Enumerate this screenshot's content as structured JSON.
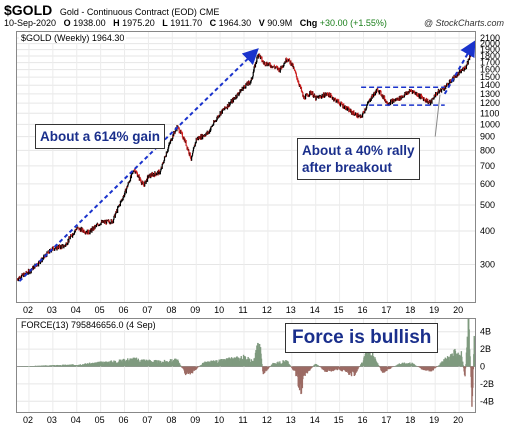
{
  "header": {
    "symbol": "$GOLD",
    "subtitle": "Gold - Continuous Contract (EOD) CME",
    "date": "10-Sep-2020",
    "open_label": "O",
    "open": "1938.00",
    "high_label": "H",
    "high": "1975.20",
    "low_label": "L",
    "low": "1911.70",
    "close_label": "C",
    "close": "1964.30",
    "volume_label": "V",
    "volume": "90.9M",
    "chg_label": "Chg",
    "chg": "+30.00 (+1.55%)",
    "brand": "@ StockCharts.com"
  },
  "annotations": {
    "gain": "About a 614% gain",
    "rally_line1": "About a 40% rally",
    "rally_line2": "after breakout",
    "force": "Force is bullish"
  },
  "colors": {
    "up": "#000000",
    "down": "#cc1f1f",
    "arrow": "#1a33cc",
    "force_fill": "#7f9a7f",
    "force_neg": "#9c6b64"
  },
  "chart_data": [
    {
      "type": "line",
      "legend": "$GOLD (Weekly) 1964.30",
      "scale": "log",
      "ylim": [
        225,
        2100
      ],
      "y_ticks": [
        300,
        400,
        500,
        600,
        700,
        800,
        900,
        1000,
        1100,
        1200,
        1300,
        1400,
        1500,
        1600,
        1700,
        1800,
        1900,
        2000,
        2100
      ],
      "x_ticks": [
        "02",
        "03",
        "04",
        "05",
        "06",
        "07",
        "08",
        "09",
        "10",
        "11",
        "12",
        "13",
        "14",
        "15",
        "16",
        "17",
        "18",
        "19",
        "20"
      ],
      "x_range": [
        2001.5,
        2020.75
      ],
      "series": [
        {
          "x": [
            2001.5,
            2002.0,
            2002.5,
            2003.0,
            2003.5,
            2004.0,
            2004.5,
            2005.0,
            2005.5,
            2006.0,
            2006.4,
            2006.8,
            2007.0,
            2007.5,
            2008.0,
            2008.2,
            2008.5,
            2008.8,
            2009.0,
            2009.5,
            2010.0,
            2010.5,
            2011.0,
            2011.3,
            2011.6,
            2011.8,
            2012.0,
            2012.5,
            2012.8,
            2013.0,
            2013.3,
            2013.5,
            2013.8,
            2014.0,
            2014.5,
            2015.0,
            2015.5,
            2015.9,
            2016.3,
            2016.6,
            2017.0,
            2017.5,
            2018.0,
            2018.5,
            2018.8,
            2019.0,
            2019.5,
            2019.8,
            2020.0,
            2020.3,
            2020.6,
            2020.7
          ],
          "values": [
            265,
            282,
            310,
            345,
            352,
            410,
            395,
            430,
            435,
            550,
            680,
            590,
            640,
            665,
            900,
            980,
            880,
            740,
            880,
            930,
            1100,
            1220,
            1380,
            1450,
            1840,
            1700,
            1680,
            1600,
            1760,
            1680,
            1420,
            1250,
            1320,
            1250,
            1300,
            1200,
            1110,
            1060,
            1250,
            1350,
            1200,
            1250,
            1340,
            1250,
            1200,
            1290,
            1400,
            1500,
            1550,
            1650,
            1950,
            1964
          ]
        }
      ]
    },
    {
      "type": "area",
      "legend": "FORCE(13) 795846656.0 (4 Sep)",
      "y_ticks": [
        "4B",
        "2B",
        "0",
        "-2B",
        "-4B"
      ],
      "ylim": [
        -5,
        5
      ],
      "x_ticks": [
        "02",
        "03",
        "04",
        "05",
        "06",
        "07",
        "08",
        "09",
        "10",
        "11",
        "12",
        "13",
        "14",
        "15",
        "16",
        "17",
        "18",
        "19",
        "20"
      ],
      "series": [
        {
          "x": [
            2001.5,
            2004.0,
            2005.8,
            2006.3,
            2007.5,
            2008.2,
            2008.6,
            2008.9,
            2009.3,
            2010.0,
            2010.5,
            2011.0,
            2011.4,
            2011.65,
            2011.8,
            2012.2,
            2012.8,
            2013.2,
            2013.35,
            2013.5,
            2014.0,
            2014.4,
            2015.0,
            2015.6,
            2016.0,
            2016.2,
            2016.8,
            2017.5,
            2018.0,
            2018.6,
            2018.9,
            2019.5,
            2019.9,
            2020.1,
            2020.25,
            2020.4,
            2020.55,
            2020.65,
            2020.75
          ],
          "values": [
            0,
            0.2,
            0.6,
            0.8,
            0.5,
            0.7,
            -0.9,
            -0.5,
            0.4,
            0.6,
            0.8,
            1.0,
            0.5,
            2.8,
            -0.8,
            0.3,
            0.6,
            -0.9,
            -3.2,
            -1.0,
            0.3,
            -0.5,
            -0.3,
            -0.9,
            0.6,
            2.0,
            -0.6,
            0.3,
            0.4,
            -0.5,
            -0.4,
            0.9,
            1.6,
            1.3,
            -1.0,
            4.6,
            -4.2,
            3.9,
            0.8
          ]
        }
      ]
    }
  ]
}
